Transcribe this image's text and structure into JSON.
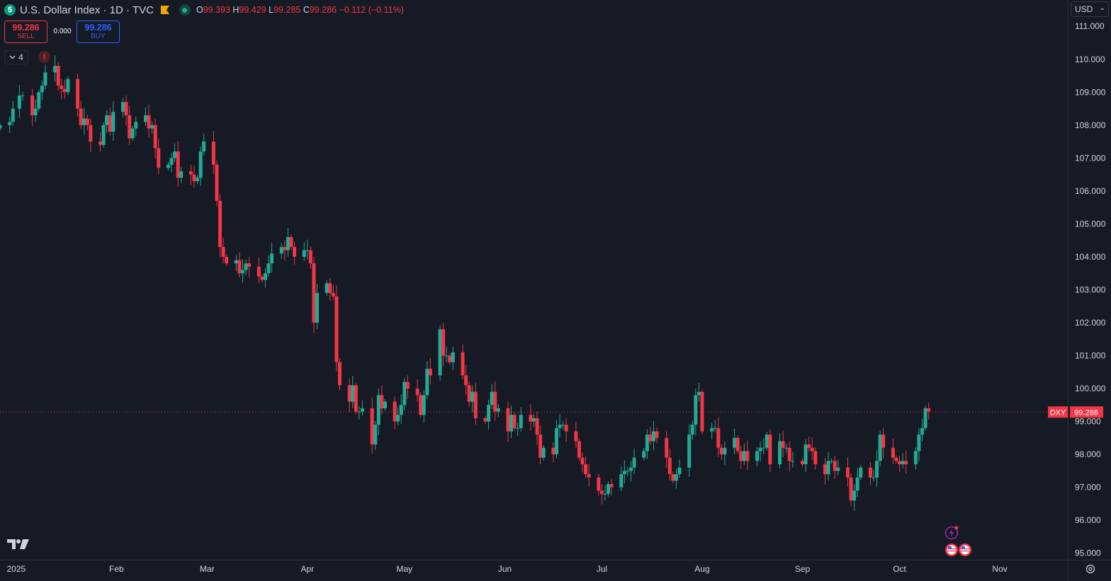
{
  "header": {
    "logo_letter": "$",
    "symbol_title": "U.S. Dollar Index · 1D · TVC",
    "ohlc": {
      "o_label": "O",
      "o": "99.393",
      "h_label": "H",
      "h": "99.429",
      "l_label": "L",
      "l": "99.285",
      "c_label": "C",
      "c": "99.286",
      "change": "−0.112 (−0.11%)"
    }
  },
  "trade": {
    "sell_price": "99.286",
    "sell_label": "SELL",
    "spread": "0.000",
    "buy_price": "99.286",
    "buy_label": "BUY"
  },
  "indicators": {
    "count": "4"
  },
  "alert_glyph": "!",
  "currency": "USD",
  "colors": {
    "up": "#22ab94",
    "down": "#f23645",
    "background": "#161a25",
    "grid": "#2a2e39"
  },
  "icons": [
    "s-logo-icon",
    "flag-icon",
    "market-status-icon",
    "chevron-down-icon",
    "alert-icon",
    "tradingview-logo-icon",
    "lightning-event-icon",
    "us-flag-event-icon",
    "settings-icon"
  ],
  "chart_data": {
    "type": "candlestick",
    "ylim": [
      94.8,
      111.8
    ],
    "y_ticks": [
      "95.000",
      "96.000",
      "97.000",
      "98.000",
      "99.000",
      "100.000",
      "101.000",
      "102.000",
      "103.000",
      "104.000",
      "105.000",
      "106.000",
      "107.000",
      "108.000",
      "109.000",
      "110.000",
      "111.000"
    ],
    "x_ticks": [
      {
        "label": "2025",
        "date": "2025-01-01"
      },
      {
        "label": "Feb",
        "date": "2025-02-01"
      },
      {
        "label": "Mar",
        "date": "2025-03-01"
      },
      {
        "label": "Apr",
        "date": "2025-04-01"
      },
      {
        "label": "May",
        "date": "2025-05-01"
      },
      {
        "label": "Jun",
        "date": "2025-06-01"
      },
      {
        "label": "Jul",
        "date": "2025-07-01"
      },
      {
        "label": "Aug",
        "date": "2025-08-01"
      },
      {
        "label": "Sep",
        "date": "2025-09-01"
      },
      {
        "label": "Oct",
        "date": "2025-10-01"
      },
      {
        "label": "Nov",
        "date": "2025-11-01"
      }
    ],
    "x_range": [
      "2024-12-27",
      "2025-11-22"
    ],
    "last_price_label": "DXY",
    "last_price": "99.286",
    "last_value": 99.286,
    "closes": [
      [
        "2024-12-27",
        108.0
      ],
      [
        "2024-12-30",
        108.1
      ],
      [
        "2024-12-31",
        108.5
      ],
      [
        "2025-01-02",
        108.9
      ],
      [
        "2025-01-03",
        108.9
      ],
      [
        "2025-01-06",
        108.3
      ],
      [
        "2025-01-07",
        108.5
      ],
      [
        "2025-01-08",
        109.0
      ],
      [
        "2025-01-09",
        109.2
      ],
      [
        "2025-01-10",
        109.6
      ],
      [
        "2025-01-13",
        109.8
      ],
      [
        "2025-01-14",
        109.2
      ],
      [
        "2025-01-15",
        109.1
      ],
      [
        "2025-01-16",
        109.0
      ],
      [
        "2025-01-17",
        109.4
      ],
      [
        "2025-01-20",
        108.5
      ],
      [
        "2025-01-21",
        108.0
      ],
      [
        "2025-01-22",
        108.2
      ],
      [
        "2025-01-23",
        108.0
      ],
      [
        "2025-01-24",
        107.5
      ],
      [
        "2025-01-27",
        107.4
      ],
      [
        "2025-01-28",
        108.0
      ],
      [
        "2025-01-29",
        108.3
      ],
      [
        "2025-01-30",
        107.8
      ],
      [
        "2025-01-31",
        108.4
      ],
      [
        "2025-02-03",
        108.7
      ],
      [
        "2025-02-04",
        108.3
      ],
      [
        "2025-02-05",
        107.6
      ],
      [
        "2025-02-06",
        107.9
      ],
      [
        "2025-02-07",
        108.1
      ],
      [
        "2025-02-10",
        108.3
      ],
      [
        "2025-02-11",
        107.9
      ],
      [
        "2025-02-12",
        108.0
      ],
      [
        "2025-02-13",
        107.3
      ],
      [
        "2025-02-14",
        106.7
      ],
      [
        "2025-02-17",
        106.8
      ],
      [
        "2025-02-18",
        107.0
      ],
      [
        "2025-02-19",
        107.2
      ],
      [
        "2025-02-20",
        106.4
      ],
      [
        "2025-02-21",
        106.6
      ],
      [
        "2025-02-24",
        106.5
      ],
      [
        "2025-02-25",
        106.3
      ],
      [
        "2025-02-26",
        106.4
      ],
      [
        "2025-02-27",
        107.2
      ],
      [
        "2025-02-28",
        107.5
      ],
      [
        "2025-03-03",
        106.8
      ],
      [
        "2025-03-04",
        105.7
      ],
      [
        "2025-03-05",
        104.3
      ],
      [
        "2025-03-06",
        104.0
      ],
      [
        "2025-03-07",
        103.8
      ],
      [
        "2025-03-10",
        103.9
      ],
      [
        "2025-03-11",
        103.5
      ],
      [
        "2025-03-12",
        103.6
      ],
      [
        "2025-03-13",
        103.8
      ],
      [
        "2025-03-14",
        103.7
      ],
      [
        "2025-03-17",
        103.4
      ],
      [
        "2025-03-18",
        103.3
      ],
      [
        "2025-03-19",
        103.5
      ],
      [
        "2025-03-20",
        103.8
      ],
      [
        "2025-03-21",
        104.1
      ],
      [
        "2025-03-24",
        104.3
      ],
      [
        "2025-03-25",
        104.2
      ],
      [
        "2025-03-26",
        104.6
      ],
      [
        "2025-03-27",
        104.3
      ],
      [
        "2025-03-28",
        104.0
      ],
      [
        "2025-03-31",
        104.2
      ],
      [
        "2025-04-01",
        104.2
      ],
      [
        "2025-04-02",
        103.8
      ],
      [
        "2025-04-03",
        102.0
      ],
      [
        "2025-04-04",
        102.9
      ],
      [
        "2025-04-07",
        103.2
      ],
      [
        "2025-04-08",
        102.9
      ],
      [
        "2025-04-09",
        102.8
      ],
      [
        "2025-04-10",
        100.8
      ],
      [
        "2025-04-11",
        100.1
      ],
      [
        "2025-04-14",
        99.6
      ],
      [
        "2025-04-15",
        100.1
      ],
      [
        "2025-04-16",
        99.3
      ],
      [
        "2025-04-17",
        99.3
      ],
      [
        "2025-04-18",
        99.4
      ],
      [
        "2025-04-21",
        98.3
      ],
      [
        "2025-04-22",
        98.9
      ],
      [
        "2025-04-23",
        99.8
      ],
      [
        "2025-04-24",
        99.4
      ],
      [
        "2025-04-25",
        99.6
      ],
      [
        "2025-04-28",
        99.0
      ],
      [
        "2025-04-29",
        99.2
      ],
      [
        "2025-04-30",
        99.5
      ],
      [
        "2025-05-01",
        100.2
      ],
      [
        "2025-05-02",
        100.0
      ],
      [
        "2025-05-05",
        99.8
      ],
      [
        "2025-05-06",
        99.2
      ],
      [
        "2025-05-07",
        99.8
      ],
      [
        "2025-05-08",
        100.6
      ],
      [
        "2025-05-09",
        100.4
      ],
      [
        "2025-05-12",
        101.8
      ],
      [
        "2025-05-13",
        101.0
      ],
      [
        "2025-05-14",
        101.0
      ],
      [
        "2025-05-15",
        100.8
      ],
      [
        "2025-05-16",
        101.1
      ],
      [
        "2025-05-19",
        100.4
      ],
      [
        "2025-05-20",
        100.1
      ],
      [
        "2025-05-21",
        99.6
      ],
      [
        "2025-05-22",
        99.9
      ],
      [
        "2025-05-23",
        99.1
      ],
      [
        "2025-05-26",
        99.0
      ],
      [
        "2025-05-27",
        99.5
      ],
      [
        "2025-05-28",
        99.9
      ],
      [
        "2025-05-29",
        99.3
      ],
      [
        "2025-05-30",
        99.4
      ],
      [
        "2025-06-02",
        98.7
      ],
      [
        "2025-06-03",
        99.2
      ],
      [
        "2025-06-04",
        98.8
      ],
      [
        "2025-06-05",
        98.8
      ],
      [
        "2025-06-06",
        99.2
      ],
      [
        "2025-06-09",
        99.0
      ],
      [
        "2025-06-10",
        99.1
      ],
      [
        "2025-06-11",
        98.6
      ],
      [
        "2025-06-12",
        97.9
      ],
      [
        "2025-06-13",
        98.2
      ],
      [
        "2025-06-16",
        98.0
      ],
      [
        "2025-06-17",
        98.8
      ],
      [
        "2025-06-18",
        98.9
      ],
      [
        "2025-06-19",
        98.9
      ],
      [
        "2025-06-20",
        98.7
      ],
      [
        "2025-06-23",
        98.4
      ],
      [
        "2025-06-24",
        97.9
      ],
      [
        "2025-06-25",
        97.7
      ],
      [
        "2025-06-26",
        97.4
      ],
      [
        "2025-06-27",
        97.3
      ],
      [
        "2025-06-30",
        96.9
      ],
      [
        "2025-07-01",
        96.8
      ],
      [
        "2025-07-02",
        96.8
      ],
      [
        "2025-07-03",
        97.1
      ],
      [
        "2025-07-04",
        97.0
      ],
      [
        "2025-07-07",
        97.4
      ],
      [
        "2025-07-08",
        97.5
      ],
      [
        "2025-07-09",
        97.5
      ],
      [
        "2025-07-10",
        97.6
      ],
      [
        "2025-07-11",
        97.9
      ],
      [
        "2025-07-14",
        98.1
      ],
      [
        "2025-07-15",
        98.6
      ],
      [
        "2025-07-16",
        98.4
      ],
      [
        "2025-07-17",
        98.7
      ],
      [
        "2025-07-18",
        98.5
      ],
      [
        "2025-07-21",
        97.9
      ],
      [
        "2025-07-22",
        97.4
      ],
      [
        "2025-07-23",
        97.2
      ],
      [
        "2025-07-24",
        97.4
      ],
      [
        "2025-07-25",
        97.6
      ],
      [
        "2025-07-28",
        98.6
      ],
      [
        "2025-07-29",
        98.9
      ],
      [
        "2025-07-30",
        99.8
      ],
      [
        "2025-07-31",
        99.9
      ],
      [
        "2025-08-01",
        98.7
      ],
      [
        "2025-08-04",
        98.8
      ],
      [
        "2025-08-05",
        98.8
      ],
      [
        "2025-08-06",
        98.2
      ],
      [
        "2025-08-07",
        98.0
      ],
      [
        "2025-08-08",
        98.2
      ],
      [
        "2025-08-11",
        98.5
      ],
      [
        "2025-08-12",
        98.1
      ],
      [
        "2025-08-13",
        97.8
      ],
      [
        "2025-08-14",
        98.1
      ],
      [
        "2025-08-15",
        97.8
      ],
      [
        "2025-08-18",
        98.1
      ],
      [
        "2025-08-19",
        98.2
      ],
      [
        "2025-08-20",
        98.2
      ],
      [
        "2025-08-21",
        98.6
      ],
      [
        "2025-08-22",
        97.7
      ],
      [
        "2025-08-25",
        98.4
      ],
      [
        "2025-08-26",
        98.2
      ],
      [
        "2025-08-27",
        98.2
      ],
      [
        "2025-08-28",
        97.8
      ],
      [
        "2025-08-29",
        97.8
      ],
      [
        "2025-09-01",
        97.7
      ],
      [
        "2025-09-02",
        98.3
      ],
      [
        "2025-09-03",
        98.2
      ],
      [
        "2025-09-04",
        98.1
      ],
      [
        "2025-09-05",
        97.7
      ],
      [
        "2025-09-08",
        97.4
      ],
      [
        "2025-09-09",
        97.8
      ],
      [
        "2025-09-10",
        97.8
      ],
      [
        "2025-09-11",
        97.5
      ],
      [
        "2025-09-12",
        97.6
      ],
      [
        "2025-09-15",
        97.3
      ],
      [
        "2025-09-16",
        96.6
      ],
      [
        "2025-09-17",
        96.9
      ],
      [
        "2025-09-18",
        97.3
      ],
      [
        "2025-09-19",
        97.6
      ],
      [
        "2025-09-22",
        97.3
      ],
      [
        "2025-09-23",
        97.3
      ],
      [
        "2025-09-24",
        97.8
      ],
      [
        "2025-09-25",
        98.6
      ],
      [
        "2025-09-26",
        98.2
      ],
      [
        "2025-09-29",
        97.9
      ],
      [
        "2025-09-30",
        97.8
      ],
      [
        "2025-10-01",
        97.7
      ],
      [
        "2025-10-02",
        97.8
      ],
      [
        "2025-10-03",
        97.7
      ],
      [
        "2025-10-06",
        98.1
      ],
      [
        "2025-10-07",
        98.6
      ],
      [
        "2025-10-08",
        98.8
      ],
      [
        "2025-10-09",
        99.4
      ],
      [
        "2025-10-10",
        99.3
      ]
    ]
  }
}
